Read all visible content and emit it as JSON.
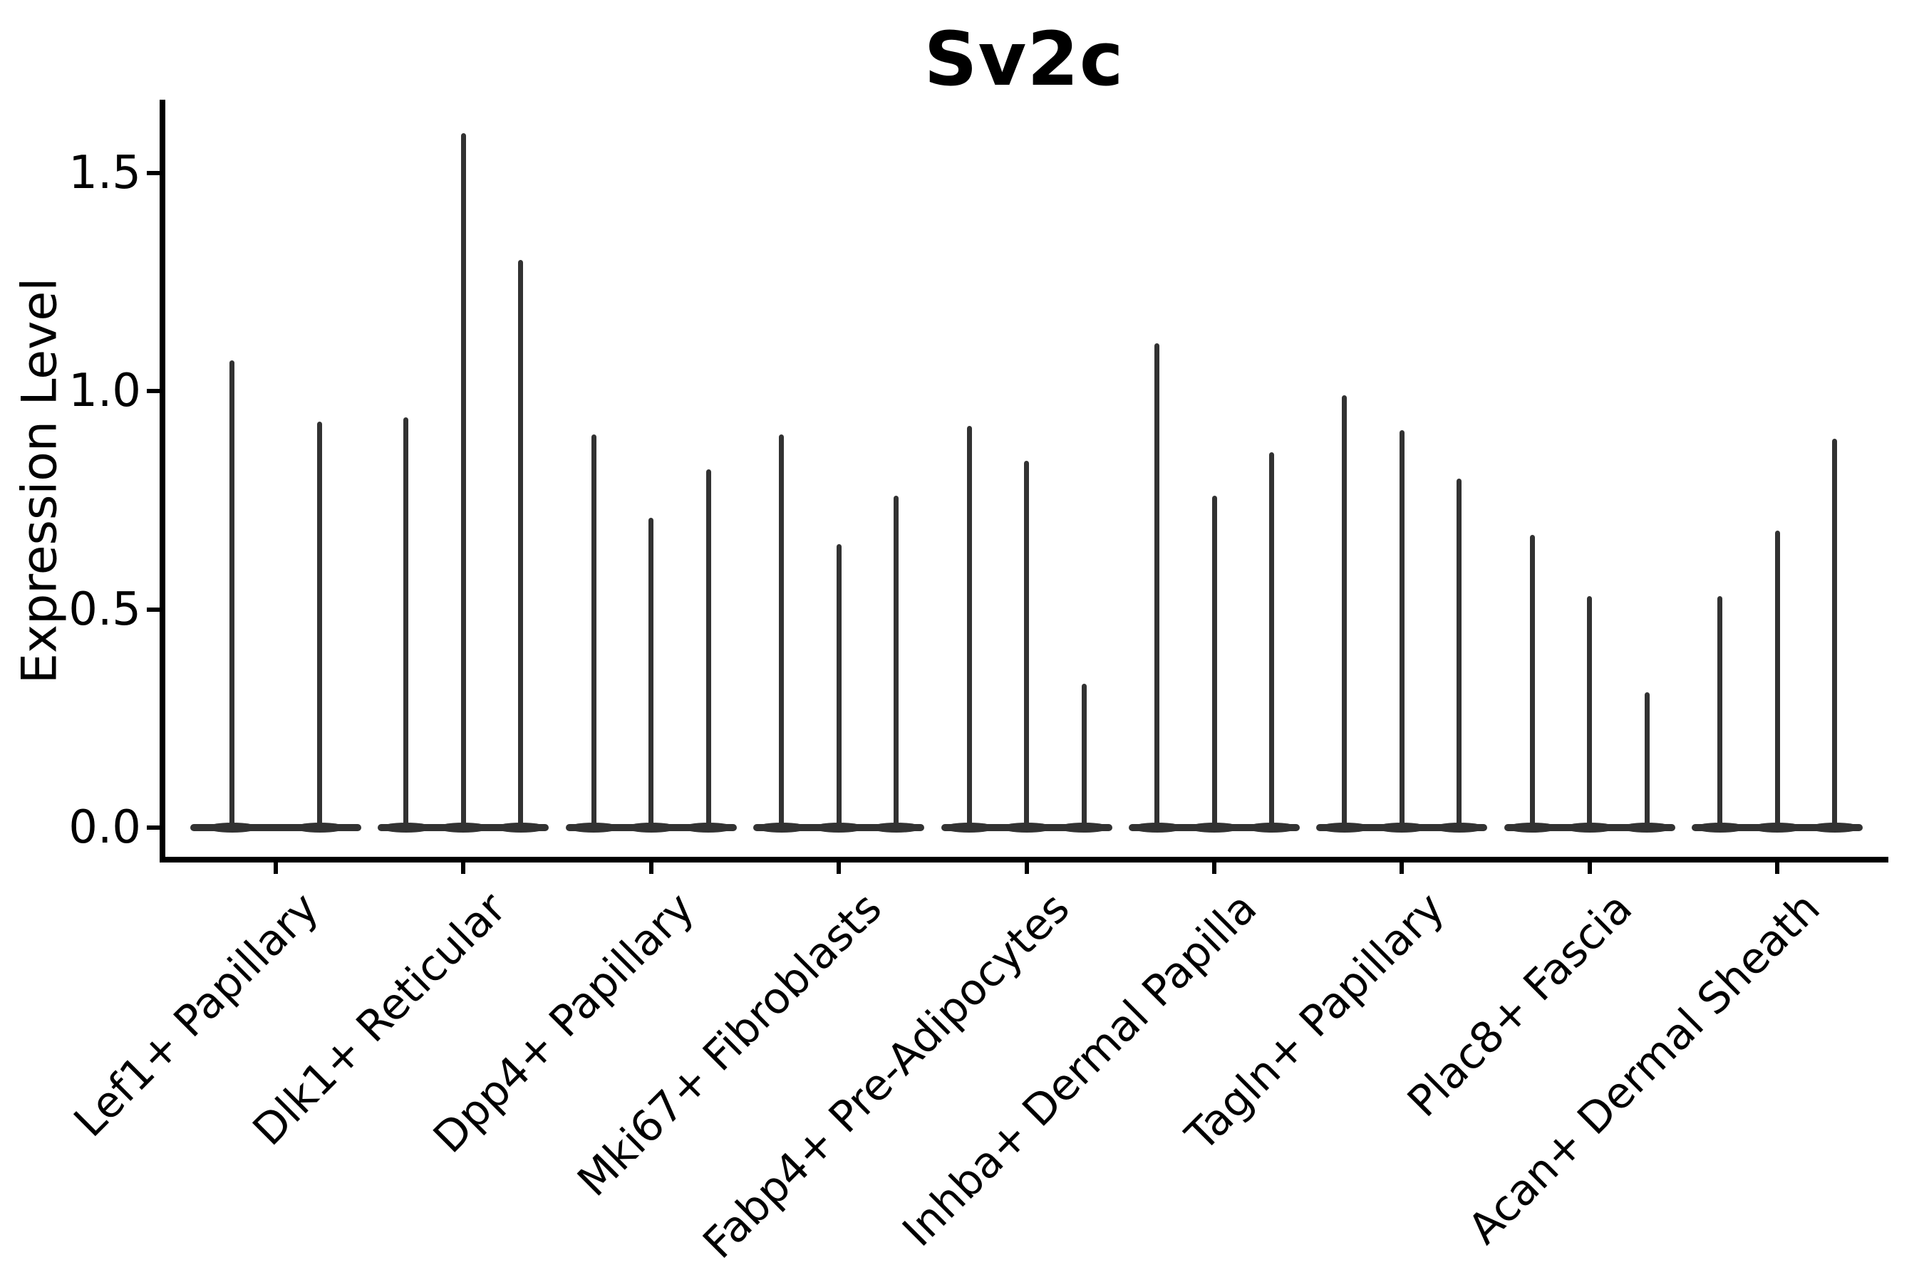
{
  "title": "Sv2c",
  "y_axis": {
    "label": "Expression Level",
    "tick_labels": [
      "0.0",
      "0.5",
      "1.0",
      "1.5"
    ],
    "tick_values": [
      0.0,
      0.5,
      1.0,
      1.5
    ]
  },
  "x_axis": {
    "categories": [
      "Lef1+ Papillary",
      "Dlk1+ Reticular",
      "Dpp4+ Papillary",
      "Mki67+ Fibroblasts",
      "Fabp4+ Pre-Adipocytes",
      "Inhba+ Dermal Papilla",
      "Tagln+ Papillary",
      "Plac8+ Fascia",
      "Acan+ Dermal Sheath"
    ]
  },
  "colors": {
    "violin": "#323232",
    "axis": "#000000",
    "text": "#000000",
    "background": "#ffffff"
  },
  "chart_data": {
    "type": "violin",
    "title": "Sv2c",
    "xlabel": "",
    "ylabel": "Expression Level",
    "ylim": [
      0,
      1.67
    ],
    "yticks": [
      0.0,
      0.5,
      1.0,
      1.5
    ],
    "grid": false,
    "legend": "none",
    "categories": [
      "Lef1+ Papillary",
      "Dlk1+ Reticular",
      "Dpp4+ Papillary",
      "Mki67+ Fibroblasts",
      "Fabp4+ Pre-Adipocytes",
      "Inhba+ Dermal Papilla",
      "Tagln+ Papillary",
      "Plac8+ Fascia",
      "Acan+ Dermal Sheath"
    ],
    "series": [
      {
        "category": "Lef1+ Papillary",
        "violin_peaks": [
          1.07,
          0.93
        ]
      },
      {
        "category": "Dlk1+ Reticular",
        "violin_peaks": [
          0.94,
          1.59,
          1.3
        ]
      },
      {
        "category": "Dpp4+ Papillary",
        "violin_peaks": [
          0.9,
          0.71,
          0.82
        ]
      },
      {
        "category": "Mki67+ Fibroblasts",
        "violin_peaks": [
          0.9,
          0.65,
          0.76
        ]
      },
      {
        "category": "Fabp4+ Pre-Adipocytes",
        "violin_peaks": [
          0.92,
          0.84,
          0.33
        ]
      },
      {
        "category": "Inhba+ Dermal Papilla",
        "violin_peaks": [
          1.11,
          0.76,
          0.86
        ]
      },
      {
        "category": "Tagln+ Papillary",
        "violin_peaks": [
          0.99,
          0.91,
          0.8
        ]
      },
      {
        "category": "Plac8+ Fascia",
        "violin_peaks": [
          0.67,
          0.53,
          0.31
        ]
      },
      {
        "category": "Acan+ Dermal Sheath",
        "violin_peaks": [
          0.53,
          0.68,
          0.89
        ]
      }
    ],
    "note": "Each violin is a needle shape: density mass flattened at expression 0 with a thin spike reaching the listed maximum expression value."
  }
}
